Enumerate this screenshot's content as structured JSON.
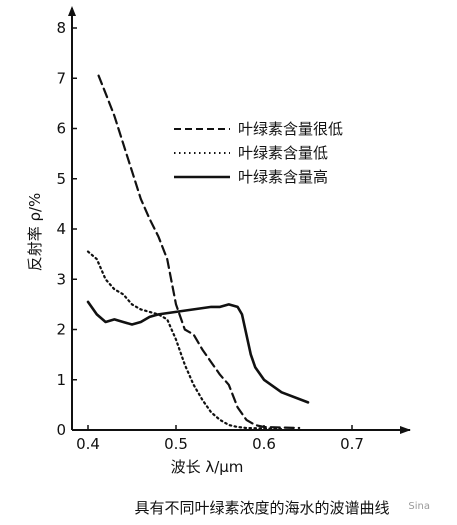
{
  "chart_data": {
    "type": "line",
    "title": "",
    "xlabel": "波长 λ/μm",
    "ylabel": "反射率 ρ/%",
    "xlim": [
      0.4,
      0.7
    ],
    "ylim": [
      0,
      8
    ],
    "xticks": [
      0.4,
      0.5,
      0.6,
      0.7
    ],
    "xtick_labels": [
      "0.4",
      "0.5",
      "0.6",
      "0.7"
    ],
    "yticks": [
      0,
      1,
      2,
      3,
      4,
      5,
      6,
      7,
      8
    ],
    "ytick_labels": [
      "0",
      "1",
      "2",
      "3",
      "4",
      "5",
      "6",
      "7",
      "8"
    ],
    "grid": false,
    "legend_position": "top-right",
    "series": [
      {
        "name": "叶绿素含量很低",
        "line_style": "dashed",
        "color": "#111111",
        "x": [
          0.412,
          0.42,
          0.43,
          0.44,
          0.45,
          0.46,
          0.47,
          0.48,
          0.49,
          0.5,
          0.51,
          0.52,
          0.53,
          0.54,
          0.55,
          0.56,
          0.57,
          0.58,
          0.59,
          0.6,
          0.62,
          0.64
        ],
        "y": [
          7.05,
          6.7,
          6.25,
          5.7,
          5.15,
          4.6,
          4.2,
          3.85,
          3.4,
          2.5,
          2.0,
          1.9,
          1.6,
          1.35,
          1.1,
          0.9,
          0.45,
          0.2,
          0.1,
          0.06,
          0.05,
          0.04
        ]
      },
      {
        "name": "叶绿素含量低",
        "line_style": "dotted",
        "color": "#111111",
        "x": [
          0.4,
          0.41,
          0.42,
          0.43,
          0.44,
          0.45,
          0.46,
          0.47,
          0.48,
          0.49,
          0.5,
          0.51,
          0.52,
          0.53,
          0.54,
          0.55,
          0.56,
          0.57,
          0.58,
          0.6,
          0.62
        ],
        "y": [
          3.55,
          3.4,
          3.0,
          2.8,
          2.7,
          2.5,
          2.4,
          2.35,
          2.3,
          2.2,
          1.8,
          1.3,
          0.9,
          0.6,
          0.35,
          0.2,
          0.1,
          0.06,
          0.04,
          0.03,
          0.02
        ]
      },
      {
        "name": "叶绿素含量高",
        "line_style": "solid",
        "color": "#111111",
        "x": [
          0.4,
          0.41,
          0.42,
          0.43,
          0.44,
          0.45,
          0.46,
          0.47,
          0.48,
          0.5,
          0.52,
          0.54,
          0.55,
          0.56,
          0.57,
          0.575,
          0.58,
          0.585,
          0.59,
          0.6,
          0.62,
          0.65
        ],
        "y": [
          2.55,
          2.3,
          2.15,
          2.2,
          2.15,
          2.1,
          2.15,
          2.25,
          2.3,
          2.35,
          2.4,
          2.45,
          2.45,
          2.5,
          2.45,
          2.3,
          1.9,
          1.5,
          1.25,
          1.0,
          0.75,
          0.55
        ]
      }
    ],
    "caption": "具有不同叶绿素浓度的海水的波谱曲线"
  },
  "watermark": "Sina"
}
